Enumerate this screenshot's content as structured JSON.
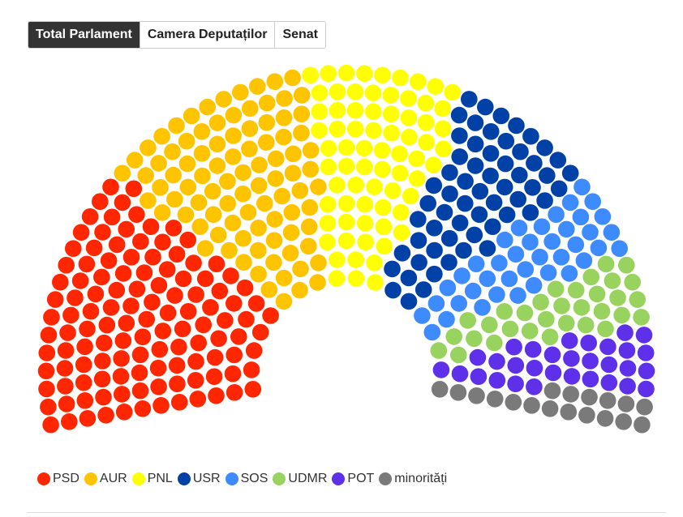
{
  "tabs": [
    {
      "label": "Total Parlament",
      "active": true
    },
    {
      "label": "Camera Deputaților",
      "active": false
    },
    {
      "label": "Senat",
      "active": false
    }
  ],
  "chart_data": {
    "type": "pie",
    "subtype": "parliament-hemicycle",
    "categories": [
      "PSD",
      "AUR",
      "PNL",
      "USR",
      "SOS",
      "UDMR",
      "POT",
      "minorități"
    ],
    "values": [
      122,
      91,
      71,
      59,
      40,
      32,
      31,
      18
    ],
    "colors": [
      "#ff2600",
      "#ffc400",
      "#ffff00",
      "#0041a8",
      "#3d8bff",
      "#99d35f",
      "#5e30ea",
      "#7a7a7a"
    ],
    "legend_position": "bottom-left"
  }
}
